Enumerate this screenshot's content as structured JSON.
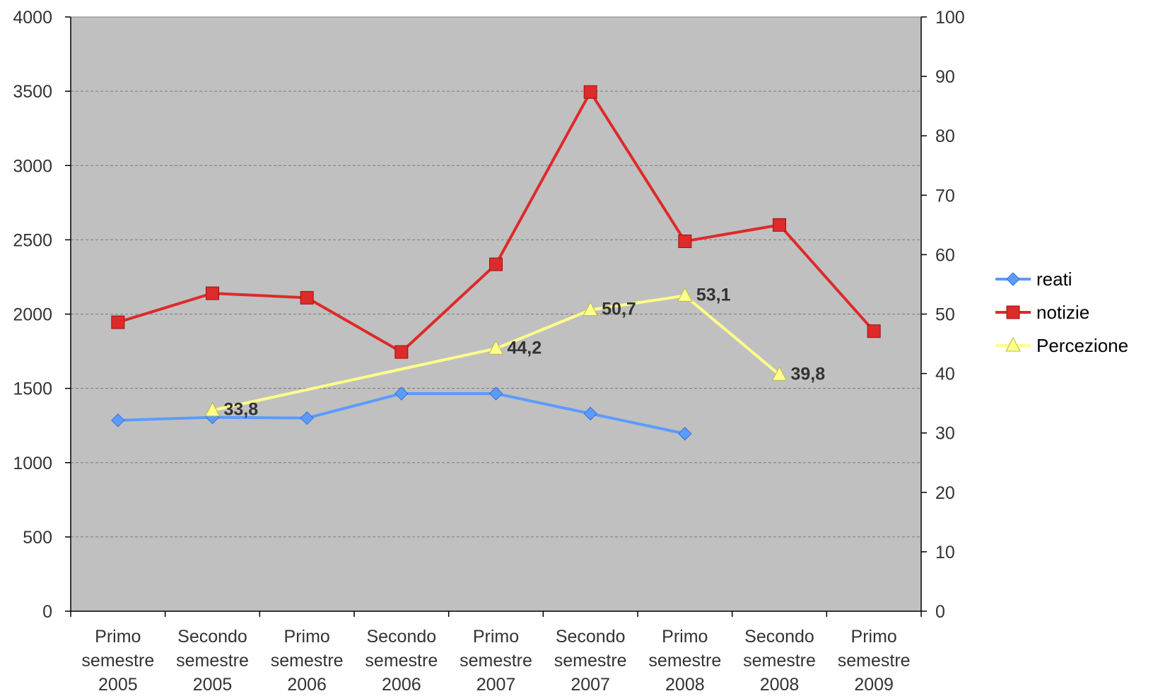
{
  "chart_data": {
    "type": "line",
    "title": "",
    "xlabel": "",
    "ylabel": "",
    "categories": [
      [
        "Primo",
        "semestre",
        "2005"
      ],
      [
        "Secondo",
        "semestre",
        "2005"
      ],
      [
        "Primo",
        "semestre",
        "2006"
      ],
      [
        "Secondo",
        "semestre",
        "2006"
      ],
      [
        "Primo",
        "semestre",
        "2007"
      ],
      [
        "Secondo",
        "semestre",
        "2007"
      ],
      [
        "Primo",
        "semestre",
        "2008"
      ],
      [
        "Secondo",
        "semestre",
        "2008"
      ],
      [
        "Primo",
        "semestre",
        "2009"
      ]
    ],
    "y_left": {
      "min": 0,
      "max": 4000,
      "step": 500,
      "ticks": [
        "0",
        "500",
        "1000",
        "1500",
        "2000",
        "2500",
        "3000",
        "3500",
        "4000"
      ]
    },
    "y_right": {
      "min": 0,
      "max": 100,
      "step": 10,
      "ticks": [
        "0",
        "10",
        "20",
        "30",
        "40",
        "50",
        "60",
        "70",
        "80",
        "90",
        "100"
      ]
    },
    "grid": true,
    "plot_background": "#c0c0c0",
    "legend": {
      "placement": "right"
    },
    "series": [
      {
        "name": "reati",
        "axis": "left",
        "color": "#5b9bff",
        "marker": "diamond",
        "values": [
          1285,
          1305,
          1300,
          1465,
          1465,
          1330,
          1195,
          null,
          null
        ]
      },
      {
        "name": "notizie",
        "axis": "left",
        "color": "#dd2a2a",
        "marker": "square",
        "values": [
          1945,
          2140,
          2110,
          1745,
          2335,
          3495,
          2490,
          2600,
          1885
        ]
      },
      {
        "name": "Percezione",
        "axis": "right",
        "color": "#ffff8a",
        "marker": "triangle",
        "values": [
          null,
          33.8,
          null,
          null,
          44.2,
          50.7,
          53.1,
          39.8,
          null
        ],
        "data_labels": [
          null,
          "33,8",
          null,
          null,
          "44,2",
          "50,7",
          "53,1",
          "39,8",
          null
        ]
      }
    ]
  }
}
